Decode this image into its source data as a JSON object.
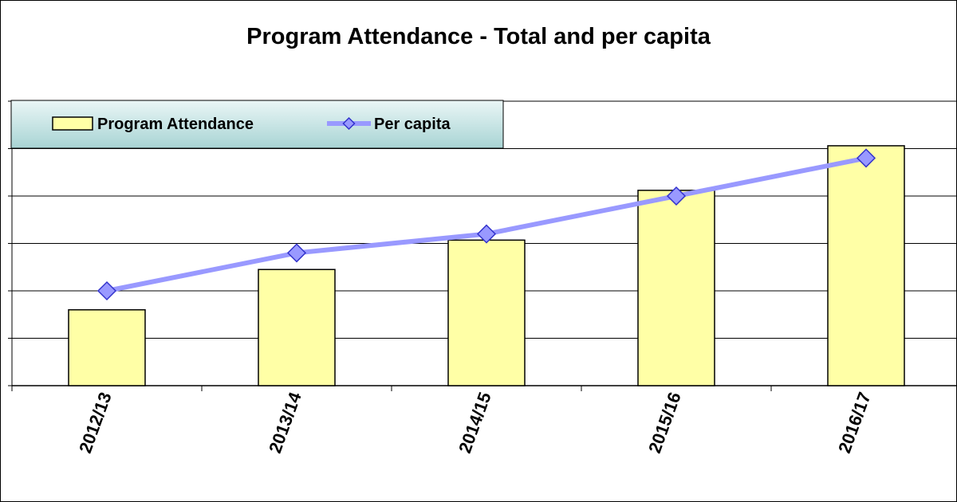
{
  "chart_data": {
    "type": "bar",
    "title": "Program Attendance - Total and per capita",
    "categories": [
      "2012/13",
      "2013/14",
      "2014/15",
      "2015/16",
      "2016/17"
    ],
    "ylim": [
      0,
      6
    ],
    "y_axis_labels_shown": false,
    "grid": true,
    "legend_placement": "top-left",
    "series": [
      {
        "name": "Program Attendance",
        "type": "bar",
        "values": [
          1.6,
          2.45,
          3.07,
          4.12,
          5.06
        ],
        "color": "#FFFFA6",
        "stroke": "#000000"
      },
      {
        "name": "Per capita",
        "type": "line",
        "marker": "diamond",
        "values": [
          2.0,
          2.8,
          3.2,
          4.0,
          4.8
        ],
        "color": "#9999FF",
        "marker_color": "#9999FF",
        "marker_stroke": "#3333CC"
      }
    ]
  }
}
